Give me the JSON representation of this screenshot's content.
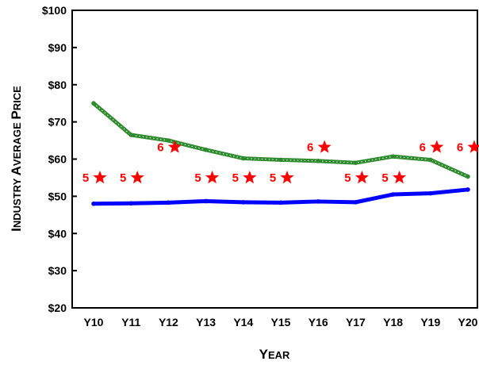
{
  "chart_data": {
    "type": "line",
    "ylabel": "Industry Average Price",
    "xlabel": "Year",
    "categories": [
      "Y10",
      "Y11",
      "Y12",
      "Y13",
      "Y14",
      "Y15",
      "Y16",
      "Y17",
      "Y18",
      "Y19",
      "Y20"
    ],
    "ylim": [
      20,
      100
    ],
    "yticks": [
      20,
      30,
      40,
      50,
      60,
      70,
      80,
      90,
      100
    ],
    "ytick_labels": [
      "$20",
      "$30",
      "$40",
      "$50",
      "$60",
      "$70",
      "$80",
      "$90",
      "$100"
    ],
    "grid": false,
    "series": [
      {
        "color": "#2e8b2e",
        "style": "dotted-thick",
        "values": [
          75.0,
          66.5,
          65.0,
          62.5,
          60.2,
          59.8,
          59.5,
          59.0,
          60.7,
          59.8,
          55.3
        ]
      },
      {
        "color": "#0000ff",
        "style": "solid-thick",
        "values": [
          48.0,
          48.1,
          48.3,
          48.7,
          48.4,
          48.3,
          48.6,
          48.4,
          50.5,
          50.8,
          51.8
        ]
      }
    ],
    "annotations": [
      {
        "category": "Y10",
        "value": 55,
        "label": "5"
      },
      {
        "category": "Y11",
        "value": 55,
        "label": "5"
      },
      {
        "category": "Y12",
        "value": 63.2,
        "label": "6"
      },
      {
        "category": "Y13",
        "value": 55,
        "label": "5"
      },
      {
        "category": "Y14",
        "value": 55,
        "label": "5"
      },
      {
        "category": "Y15",
        "value": 55,
        "label": "5"
      },
      {
        "category": "Y16",
        "value": 63.2,
        "label": "6"
      },
      {
        "category": "Y17",
        "value": 55,
        "label": "5"
      },
      {
        "category": "Y18",
        "value": 55,
        "label": "5"
      },
      {
        "category": "Y19",
        "value": 63.2,
        "label": "6"
      },
      {
        "category": "Y20",
        "value": 63.2,
        "label": "6"
      }
    ],
    "annotation_color": "#ff0000"
  }
}
